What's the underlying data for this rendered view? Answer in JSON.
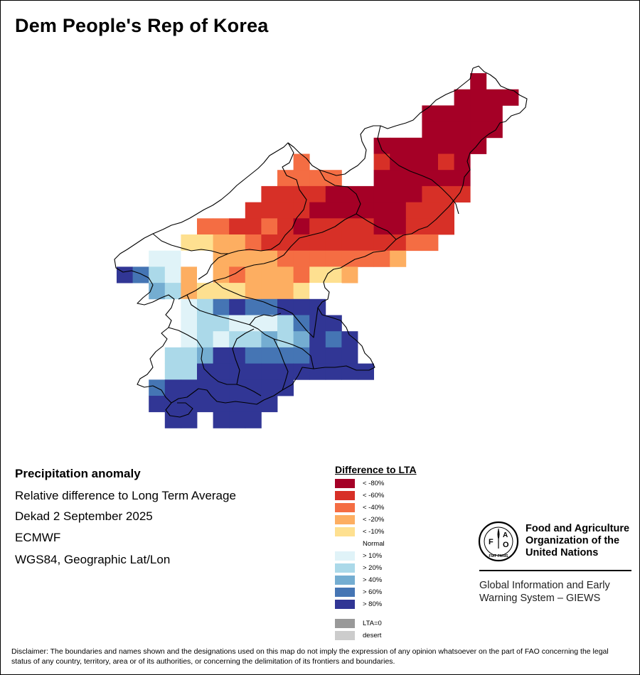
{
  "title": "Dem People's Rep of Korea",
  "info": {
    "heading": "Precipitation anomaly",
    "subtitle": "Relative difference to Long Term Average",
    "period": "Dekad 2 September 2025",
    "model": "ECMWF",
    "projection": "WGS84, Geographic Lat/Lon"
  },
  "legend": {
    "title": "Difference to LTA",
    "items": [
      {
        "label": "< -80%",
        "color": "#a50026"
      },
      {
        "label": "< -60%",
        "color": "#d73027"
      },
      {
        "label": "< -40%",
        "color": "#f46d43"
      },
      {
        "label": "< -20%",
        "color": "#fdae61"
      },
      {
        "label": "< -10%",
        "color": "#fee090"
      },
      {
        "label": "Normal",
        "color": "#ffffff"
      },
      {
        "label": "> 10%",
        "color": "#e0f3f8"
      },
      {
        "label": "> 20%",
        "color": "#abd9e9"
      },
      {
        "label": "> 40%",
        "color": "#74add1"
      },
      {
        "label": "> 60%",
        "color": "#4575b4"
      },
      {
        "label": "> 80%",
        "color": "#313695"
      }
    ],
    "extra": [
      {
        "label": "LTA=0",
        "color": "#999999"
      },
      {
        "label": "desert",
        "color": "#cccccc"
      }
    ]
  },
  "logo": {
    "emblem_letters": [
      "F",
      "A",
      "O"
    ],
    "emblem_motto": "FIAT PANIS",
    "org_lines": [
      "Food and Agriculture",
      "Organization of the",
      "United Nations"
    ],
    "giews_lines": [
      "Global Information and Early",
      "Warning System – GIEWS"
    ]
  },
  "disclaimer": "Disclaimer: The boundaries and names shown and the designations used on this map do not imply the expression of any opinion whatsoever on the part of FAO concerning the legal status of any country, territory, area or of its authorities, or concerning the delimitation of its frontiers and boundaries.",
  "map_data": {
    "cells": [
      {
        "row": 0,
        "col": 22,
        "cls": 0
      },
      {
        "row": 1,
        "col": 21,
        "cls": 0
      },
      {
        "row": 1,
        "col": 22,
        "cls": 0
      },
      {
        "row": 1,
        "col": 23,
        "cls": 0
      },
      {
        "row": 1,
        "col": 24,
        "cls": 0
      },
      {
        "row": 2,
        "col": 19,
        "cls": 0
      },
      {
        "row": 2,
        "col": 20,
        "cls": 0
      },
      {
        "row": 2,
        "col": 21,
        "cls": 0
      },
      {
        "row": 2,
        "col": 22,
        "cls": 0
      },
      {
        "row": 2,
        "col": 23,
        "cls": 0
      },
      {
        "row": 3,
        "col": 19,
        "cls": 0
      },
      {
        "row": 3,
        "col": 20,
        "cls": 0
      },
      {
        "row": 3,
        "col": 21,
        "cls": 0
      },
      {
        "row": 3,
        "col": 22,
        "cls": 0
      },
      {
        "row": 3,
        "col": 23,
        "cls": 0
      },
      {
        "row": 4,
        "col": 16,
        "cls": 0
      },
      {
        "row": 4,
        "col": 17,
        "cls": 0
      },
      {
        "row": 4,
        "col": 18,
        "cls": 0
      },
      {
        "row": 4,
        "col": 19,
        "cls": 0
      },
      {
        "row": 4,
        "col": 20,
        "cls": 0
      },
      {
        "row": 4,
        "col": 21,
        "cls": 0
      },
      {
        "row": 4,
        "col": 22,
        "cls": 0
      },
      {
        "row": 5,
        "col": 11,
        "cls": 2
      },
      {
        "row": 5,
        "col": 16,
        "cls": 1
      },
      {
        "row": 5,
        "col": 17,
        "cls": 0
      },
      {
        "row": 5,
        "col": 18,
        "cls": 0
      },
      {
        "row": 5,
        "col": 19,
        "cls": 0
      },
      {
        "row": 5,
        "col": 20,
        "cls": 1
      },
      {
        "row": 5,
        "col": 21,
        "cls": 0
      },
      {
        "row": 6,
        "col": 10,
        "cls": 2
      },
      {
        "row": 6,
        "col": 11,
        "cls": 2
      },
      {
        "row": 6,
        "col": 12,
        "cls": 2
      },
      {
        "row": 6,
        "col": 13,
        "cls": 2
      },
      {
        "row": 6,
        "col": 16,
        "cls": 0
      },
      {
        "row": 6,
        "col": 17,
        "cls": 0
      },
      {
        "row": 6,
        "col": 18,
        "cls": 0
      },
      {
        "row": 6,
        "col": 19,
        "cls": 0
      },
      {
        "row": 6,
        "col": 20,
        "cls": 0
      },
      {
        "row": 6,
        "col": 21,
        "cls": 0
      },
      {
        "row": 7,
        "col": 9,
        "cls": 1
      },
      {
        "row": 7,
        "col": 10,
        "cls": 1
      },
      {
        "row": 7,
        "col": 11,
        "cls": 1
      },
      {
        "row": 7,
        "col": 12,
        "cls": 1
      },
      {
        "row": 7,
        "col": 13,
        "cls": 0
      },
      {
        "row": 7,
        "col": 14,
        "cls": 0
      },
      {
        "row": 7,
        "col": 15,
        "cls": 0
      },
      {
        "row": 7,
        "col": 16,
        "cls": 0
      },
      {
        "row": 7,
        "col": 17,
        "cls": 0
      },
      {
        "row": 7,
        "col": 18,
        "cls": 0
      },
      {
        "row": 7,
        "col": 19,
        "cls": 1
      },
      {
        "row": 7,
        "col": 20,
        "cls": 1
      },
      {
        "row": 7,
        "col": 21,
        "cls": 1
      },
      {
        "row": 8,
        "col": 8,
        "cls": 1
      },
      {
        "row": 8,
        "col": 9,
        "cls": 1
      },
      {
        "row": 8,
        "col": 10,
        "cls": 1
      },
      {
        "row": 8,
        "col": 11,
        "cls": 1
      },
      {
        "row": 8,
        "col": 12,
        "cls": 0
      },
      {
        "row": 8,
        "col": 13,
        "cls": 0
      },
      {
        "row": 8,
        "col": 14,
        "cls": 0
      },
      {
        "row": 8,
        "col": 15,
        "cls": 0
      },
      {
        "row": 8,
        "col": 16,
        "cls": 0
      },
      {
        "row": 8,
        "col": 17,
        "cls": 0
      },
      {
        "row": 8,
        "col": 18,
        "cls": 1
      },
      {
        "row": 8,
        "col": 19,
        "cls": 1
      },
      {
        "row": 8,
        "col": 20,
        "cls": 1
      },
      {
        "row": 9,
        "col": 5,
        "cls": 2
      },
      {
        "row": 9,
        "col": 6,
        "cls": 2
      },
      {
        "row": 9,
        "col": 7,
        "cls": 1
      },
      {
        "row": 9,
        "col": 8,
        "cls": 1
      },
      {
        "row": 9,
        "col": 9,
        "cls": 2
      },
      {
        "row": 9,
        "col": 10,
        "cls": 1
      },
      {
        "row": 9,
        "col": 11,
        "cls": 0
      },
      {
        "row": 9,
        "col": 12,
        "cls": 1
      },
      {
        "row": 9,
        "col": 13,
        "cls": 1
      },
      {
        "row": 9,
        "col": 14,
        "cls": 1
      },
      {
        "row": 9,
        "col": 15,
        "cls": 1
      },
      {
        "row": 9,
        "col": 16,
        "cls": 0
      },
      {
        "row": 9,
        "col": 17,
        "cls": 0
      },
      {
        "row": 9,
        "col": 18,
        "cls": 1
      },
      {
        "row": 9,
        "col": 19,
        "cls": 1
      },
      {
        "row": 9,
        "col": 20,
        "cls": 1
      },
      {
        "row": 10,
        "col": 4,
        "cls": 4
      },
      {
        "row": 10,
        "col": 5,
        "cls": 4
      },
      {
        "row": 10,
        "col": 6,
        "cls": 3
      },
      {
        "row": 10,
        "col": 7,
        "cls": 3
      },
      {
        "row": 10,
        "col": 8,
        "cls": 2
      },
      {
        "row": 10,
        "col": 9,
        "cls": 1
      },
      {
        "row": 10,
        "col": 10,
        "cls": 1
      },
      {
        "row": 10,
        "col": 11,
        "cls": 1
      },
      {
        "row": 10,
        "col": 12,
        "cls": 1
      },
      {
        "row": 10,
        "col": 13,
        "cls": 1
      },
      {
        "row": 10,
        "col": 14,
        "cls": 1
      },
      {
        "row": 10,
        "col": 15,
        "cls": 1
      },
      {
        "row": 10,
        "col": 16,
        "cls": 1
      },
      {
        "row": 10,
        "col": 17,
        "cls": 1
      },
      {
        "row": 10,
        "col": 18,
        "cls": 2
      },
      {
        "row": 10,
        "col": 19,
        "cls": 2
      },
      {
        "row": 11,
        "col": 2,
        "cls": 6
      },
      {
        "row": 11,
        "col": 3,
        "cls": 6
      },
      {
        "row": 11,
        "col": 4,
        "cls": 5
      },
      {
        "row": 11,
        "col": 5,
        "cls": 5
      },
      {
        "row": 11,
        "col": 6,
        "cls": 3
      },
      {
        "row": 11,
        "col": 7,
        "cls": 3
      },
      {
        "row": 11,
        "col": 8,
        "cls": 3
      },
      {
        "row": 11,
        "col": 9,
        "cls": 3
      },
      {
        "row": 11,
        "col": 10,
        "cls": 2
      },
      {
        "row": 11,
        "col": 11,
        "cls": 2
      },
      {
        "row": 11,
        "col": 12,
        "cls": 2
      },
      {
        "row": 11,
        "col": 13,
        "cls": 2
      },
      {
        "row": 11,
        "col": 14,
        "cls": 2
      },
      {
        "row": 11,
        "col": 15,
        "cls": 2
      },
      {
        "row": 11,
        "col": 16,
        "cls": 2
      },
      {
        "row": 11,
        "col": 17,
        "cls": 3
      },
      {
        "row": 12,
        "col": 0,
        "cls": 10
      },
      {
        "row": 12,
        "col": 1,
        "cls": 9
      },
      {
        "row": 12,
        "col": 2,
        "cls": 7
      },
      {
        "row": 12,
        "col": 3,
        "cls": 6
      },
      {
        "row": 12,
        "col": 4,
        "cls": 3
      },
      {
        "row": 12,
        "col": 5,
        "cls": 5
      },
      {
        "row": 12,
        "col": 6,
        "cls": 3
      },
      {
        "row": 12,
        "col": 7,
        "cls": 2
      },
      {
        "row": 12,
        "col": 8,
        "cls": 3
      },
      {
        "row": 12,
        "col": 9,
        "cls": 3
      },
      {
        "row": 12,
        "col": 10,
        "cls": 3
      },
      {
        "row": 12,
        "col": 11,
        "cls": 2
      },
      {
        "row": 12,
        "col": 12,
        "cls": 4
      },
      {
        "row": 12,
        "col": 13,
        "cls": 4
      },
      {
        "row": 12,
        "col": 14,
        "cls": 3
      },
      {
        "row": 13,
        "col": 2,
        "cls": 8
      },
      {
        "row": 13,
        "col": 3,
        "cls": 7
      },
      {
        "row": 13,
        "col": 4,
        "cls": 3
      },
      {
        "row": 13,
        "col": 5,
        "cls": 4
      },
      {
        "row": 13,
        "col": 6,
        "cls": 4
      },
      {
        "row": 13,
        "col": 7,
        "cls": 4
      },
      {
        "row": 13,
        "col": 8,
        "cls": 3
      },
      {
        "row": 13,
        "col": 9,
        "cls": 3
      },
      {
        "row": 13,
        "col": 10,
        "cls": 3
      },
      {
        "row": 13,
        "col": 11,
        "cls": 4
      },
      {
        "row": 13,
        "col": 12,
        "cls": 5
      },
      {
        "row": 13,
        "col": 13,
        "cls": 5
      },
      {
        "row": 14,
        "col": 4,
        "cls": 6
      },
      {
        "row": 14,
        "col": 5,
        "cls": 7
      },
      {
        "row": 14,
        "col": 6,
        "cls": 9
      },
      {
        "row": 14,
        "col": 7,
        "cls": 10
      },
      {
        "row": 14,
        "col": 8,
        "cls": 9
      },
      {
        "row": 14,
        "col": 9,
        "cls": 9
      },
      {
        "row": 14,
        "col": 10,
        "cls": 10
      },
      {
        "row": 14,
        "col": 11,
        "cls": 10
      },
      {
        "row": 14,
        "col": 12,
        "cls": 10
      },
      {
        "row": 15,
        "col": 4,
        "cls": 6
      },
      {
        "row": 15,
        "col": 5,
        "cls": 7
      },
      {
        "row": 15,
        "col": 6,
        "cls": 7
      },
      {
        "row": 15,
        "col": 7,
        "cls": 6
      },
      {
        "row": 15,
        "col": 8,
        "cls": 6
      },
      {
        "row": 15,
        "col": 9,
        "cls": 6
      },
      {
        "row": 15,
        "col": 10,
        "cls": 7
      },
      {
        "row": 15,
        "col": 11,
        "cls": 9
      },
      {
        "row": 15,
        "col": 12,
        "cls": 10
      },
      {
        "row": 15,
        "col": 13,
        "cls": 10
      },
      {
        "row": 16,
        "col": 3,
        "cls": 5
      },
      {
        "row": 16,
        "col": 4,
        "cls": 6
      },
      {
        "row": 16,
        "col": 5,
        "cls": 7
      },
      {
        "row": 16,
        "col": 6,
        "cls": 6
      },
      {
        "row": 16,
        "col": 7,
        "cls": 7
      },
      {
        "row": 16,
        "col": 8,
        "cls": 7
      },
      {
        "row": 16,
        "col": 9,
        "cls": 8
      },
      {
        "row": 16,
        "col": 10,
        "cls": 7
      },
      {
        "row": 16,
        "col": 11,
        "cls": 8
      },
      {
        "row": 16,
        "col": 12,
        "cls": 10
      },
      {
        "row": 16,
        "col": 13,
        "cls": 9
      },
      {
        "row": 16,
        "col": 14,
        "cls": 10
      },
      {
        "row": 17,
        "col": 3,
        "cls": 7
      },
      {
        "row": 17,
        "col": 4,
        "cls": 7
      },
      {
        "row": 17,
        "col": 5,
        "cls": 8
      },
      {
        "row": 17,
        "col": 6,
        "cls": 10
      },
      {
        "row": 17,
        "col": 7,
        "cls": 10
      },
      {
        "row": 17,
        "col": 8,
        "cls": 9
      },
      {
        "row": 17,
        "col": 9,
        "cls": 9
      },
      {
        "row": 17,
        "col": 10,
        "cls": 9
      },
      {
        "row": 17,
        "col": 11,
        "cls": 9
      },
      {
        "row": 17,
        "col": 12,
        "cls": 10
      },
      {
        "row": 17,
        "col": 13,
        "cls": 10
      },
      {
        "row": 17,
        "col": 14,
        "cls": 10
      },
      {
        "row": 18,
        "col": 3,
        "cls": 7
      },
      {
        "row": 18,
        "col": 4,
        "cls": 7
      },
      {
        "row": 18,
        "col": 5,
        "cls": 10
      },
      {
        "row": 18,
        "col": 6,
        "cls": 10
      },
      {
        "row": 18,
        "col": 7,
        "cls": 10
      },
      {
        "row": 18,
        "col": 8,
        "cls": 10
      },
      {
        "row": 18,
        "col": 9,
        "cls": 10
      },
      {
        "row": 18,
        "col": 10,
        "cls": 10
      },
      {
        "row": 18,
        "col": 11,
        "cls": 10
      },
      {
        "row": 18,
        "col": 12,
        "cls": 10
      },
      {
        "row": 18,
        "col": 13,
        "cls": 10
      },
      {
        "row": 18,
        "col": 14,
        "cls": 10
      },
      {
        "row": 18,
        "col": 15,
        "cls": 10
      },
      {
        "row": 19,
        "col": 2,
        "cls": 9
      },
      {
        "row": 19,
        "col": 3,
        "cls": 10
      },
      {
        "row": 19,
        "col": 4,
        "cls": 10
      },
      {
        "row": 19,
        "col": 5,
        "cls": 10
      },
      {
        "row": 19,
        "col": 6,
        "cls": 10
      },
      {
        "row": 19,
        "col": 7,
        "cls": 10
      },
      {
        "row": 19,
        "col": 8,
        "cls": 10
      },
      {
        "row": 19,
        "col": 9,
        "cls": 10
      },
      {
        "row": 19,
        "col": 10,
        "cls": 10
      },
      {
        "row": 20,
        "col": 2,
        "cls": 10
      },
      {
        "row": 20,
        "col": 3,
        "cls": 10
      },
      {
        "row": 20,
        "col": 4,
        "cls": 10
      },
      {
        "row": 20,
        "col": 5,
        "cls": 10
      },
      {
        "row": 20,
        "col": 6,
        "cls": 10
      },
      {
        "row": 20,
        "col": 7,
        "cls": 10
      },
      {
        "row": 20,
        "col": 8,
        "cls": 10
      },
      {
        "row": 20,
        "col": 9,
        "cls": 10
      },
      {
        "row": 21,
        "col": 3,
        "cls": 10
      },
      {
        "row": 21,
        "col": 4,
        "cls": 10
      },
      {
        "row": 21,
        "col": 6,
        "cls": 10
      },
      {
        "row": 21,
        "col": 7,
        "cls": 10
      },
      {
        "row": 21,
        "col": 8,
        "cls": 10
      }
    ]
  }
}
